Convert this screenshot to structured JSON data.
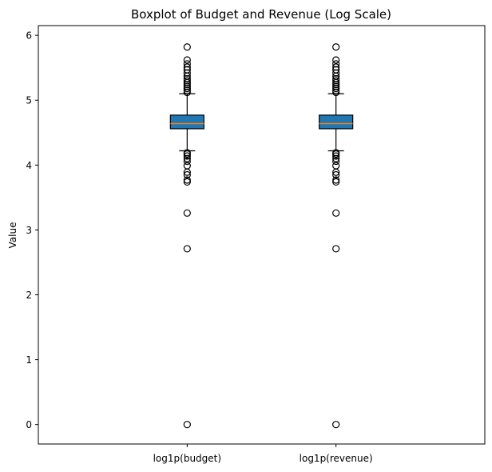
{
  "chart_data": {
    "type": "box",
    "title": "Boxplot of Budget and Revenue (Log Scale)",
    "xlabel": "",
    "ylabel": "Value",
    "ylim": [
      -0.3,
      6.15
    ],
    "yticks": [
      0,
      1,
      2,
      3,
      4,
      5,
      6
    ],
    "grid": false,
    "colors": {
      "box_fill": "#1f77b4",
      "median": "#ff7f0e",
      "edge": "#000000"
    },
    "categories": [
      "log1p(budget)",
      "log1p(revenue)"
    ],
    "boxes": [
      {
        "label": "log1p(budget)",
        "whisker_low": 4.22,
        "q1": 4.56,
        "median": 4.64,
        "q3": 4.77,
        "whisker_high": 5.1,
        "outliers": [
          5.82,
          5.62,
          5.56,
          5.51,
          5.47,
          5.42,
          5.37,
          5.33,
          5.3,
          5.27,
          5.24,
          5.21,
          5.18,
          5.15,
          5.12,
          4.19,
          4.17,
          4.14,
          4.1,
          4.06,
          3.99,
          3.89,
          3.85,
          3.77,
          3.74,
          3.26,
          2.71,
          0.0
        ]
      },
      {
        "label": "log1p(revenue)",
        "whisker_low": 4.22,
        "q1": 4.56,
        "median": 4.64,
        "q3": 4.77,
        "whisker_high": 5.1,
        "outliers": [
          5.82,
          5.62,
          5.56,
          5.51,
          5.47,
          5.42,
          5.37,
          5.33,
          5.3,
          5.27,
          5.24,
          5.21,
          5.18,
          5.15,
          5.12,
          4.19,
          4.17,
          4.14,
          4.1,
          4.06,
          3.99,
          3.89,
          3.85,
          3.77,
          3.74,
          3.26,
          2.71,
          0.0
        ]
      }
    ]
  }
}
